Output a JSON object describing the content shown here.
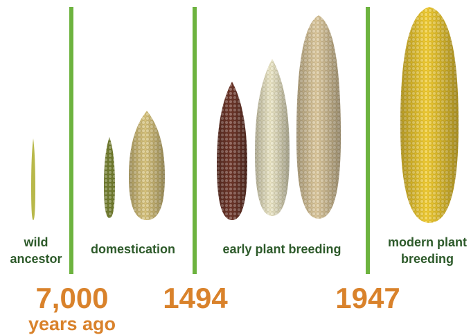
{
  "stages": [
    {
      "label": "wild ancestor"
    },
    {
      "label": "domestication"
    },
    {
      "label": "early plant breeding"
    },
    {
      "label": "modern plant breeding"
    }
  ],
  "dates": [
    {
      "label": "7,000",
      "sublabel": "years ago"
    },
    {
      "label": "1494"
    },
    {
      "label": "1947"
    }
  ]
}
